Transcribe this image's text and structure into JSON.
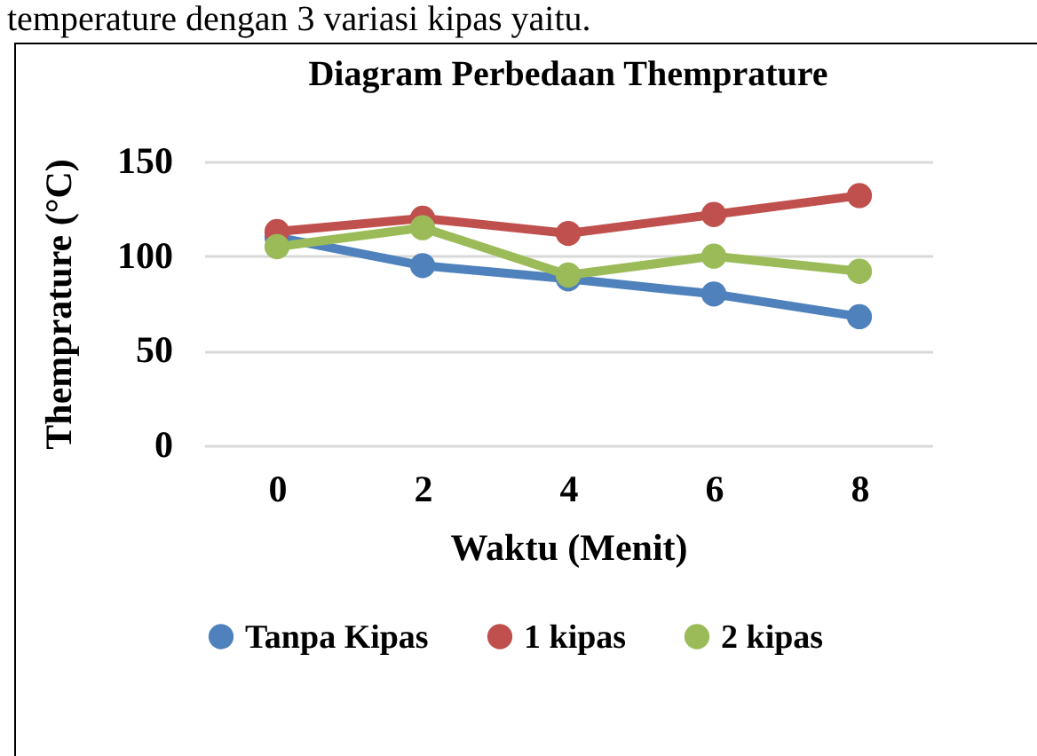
{
  "chart_data": {
    "type": "line",
    "title": "Diagram Perbedaan Themprature",
    "xlabel": "Waktu (Menit)",
    "ylabel": "Themprature (°C)",
    "annotations": [
      "temperature dengan 3 variasi kipas yaitu."
    ],
    "categories": [
      "0",
      "2",
      "4",
      "6",
      "8"
    ],
    "series": [
      {
        "name": "Tanpa Kipas",
        "color": "#4f81bd",
        "values": [
          110,
          95,
          88,
          80,
          68
        ]
      },
      {
        "name": "1 kipas",
        "color": "#c0504d",
        "values": [
          113,
          120,
          112,
          122,
          132
        ]
      },
      {
        "name": "2 kipas",
        "color": "#9bbb59",
        "values": [
          105,
          115,
          90,
          100,
          92
        ]
      }
    ],
    "ylim": [
      0,
      150
    ],
    "yticks": [
      0,
      50,
      100,
      150
    ],
    "grid": "y",
    "legend": "bottom",
    "marker": "circle",
    "line_style": "solid"
  }
}
